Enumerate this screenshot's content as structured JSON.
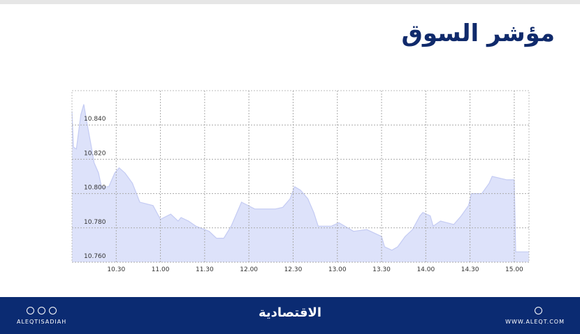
{
  "title": "مؤشر السوق",
  "chart_data": {
    "type": "area",
    "color": "#dde2fa",
    "line_color": "#c4cbf3",
    "grid": true,
    "x": [
      600,
      601,
      603,
      606,
      608,
      610,
      613,
      615,
      618,
      620,
      625,
      629,
      632,
      636,
      641,
      646,
      655,
      660,
      667,
      672,
      674,
      679,
      684,
      693,
      698,
      703,
      708,
      715,
      724,
      738,
      743,
      748,
      751,
      755,
      760,
      764,
      767,
      776,
      781,
      791,
      800,
      810,
      812,
      817,
      821,
      826,
      831,
      836,
      838,
      843,
      845,
      850,
      859,
      864,
      869,
      871,
      878,
      883,
      885,
      895,
      900,
      901,
      910
    ],
    "values": [
      10.848,
      10.827,
      10.826,
      10.846,
      10.852,
      10.842,
      10.828,
      10.818,
      10.812,
      10.804,
      10.804,
      10.812,
      10.815,
      10.812,
      10.806,
      10.795,
      10.793,
      10.785,
      10.788,
      10.784,
      10.786,
      10.784,
      10.781,
      10.778,
      10.774,
      10.774,
      10.781,
      10.795,
      10.791,
      10.791,
      10.792,
      10.797,
      10.804,
      10.802,
      10.797,
      10.789,
      10.781,
      10.781,
      10.783,
      10.778,
      10.779,
      10.775,
      10.769,
      10.767,
      10.769,
      10.775,
      10.779,
      10.787,
      10.789,
      10.787,
      10.781,
      10.784,
      10.782,
      10.787,
      10.793,
      10.8,
      10.8,
      10.806,
      10.81,
      10.808,
      10.808,
      10.766,
      10.766
    ],
    "xlim": [
      600,
      910
    ],
    "xticks": [
      {
        "value": 630,
        "label": "10.30"
      },
      {
        "value": 660,
        "label": "11.00"
      },
      {
        "value": 690,
        "label": "11.30"
      },
      {
        "value": 720,
        "label": "12.00"
      },
      {
        "value": 750,
        "label": "12.30"
      },
      {
        "value": 780,
        "label": "13.00"
      },
      {
        "value": 810,
        "label": "13.30"
      },
      {
        "value": 840,
        "label": "14.00"
      },
      {
        "value": 870,
        "label": "14.30"
      },
      {
        "value": 900,
        "label": "15.00"
      }
    ],
    "ylim": [
      10.76,
      10.86
    ],
    "yticks": [
      {
        "value": 10.76,
        "label": "10.760"
      },
      {
        "value": 10.78,
        "label": "10.780"
      },
      {
        "value": 10.8,
        "label": "10.800"
      },
      {
        "value": 10.82,
        "label": "10.820"
      },
      {
        "value": 10.84,
        "label": "10.840"
      }
    ]
  },
  "footer": {
    "handle": "ALEQTISADIAH",
    "logo": "الاقتصادية",
    "website": "WWW.ALEQT.COM"
  }
}
